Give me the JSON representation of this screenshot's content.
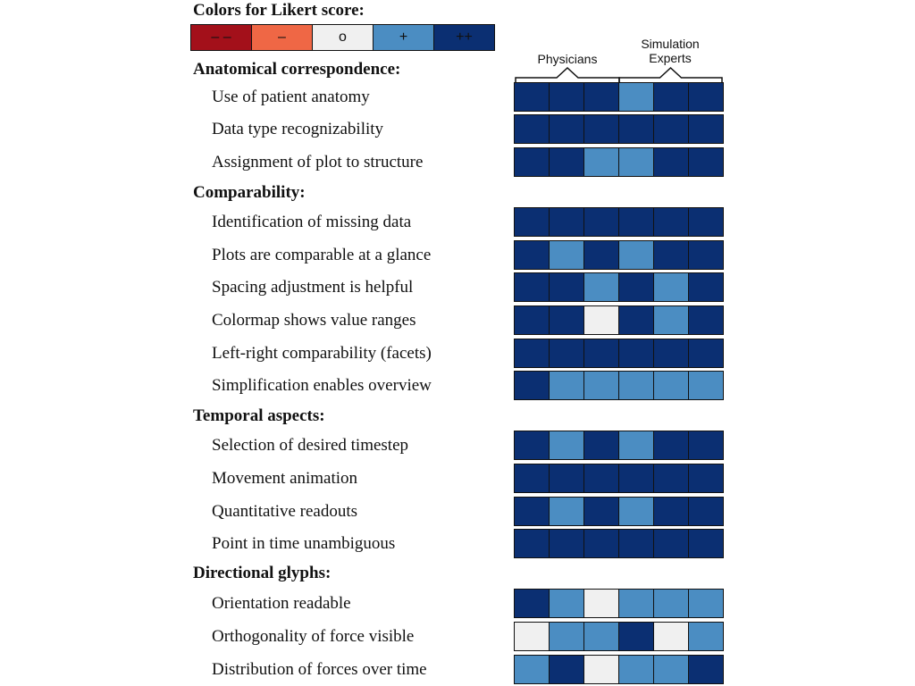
{
  "chart_data": {
    "type": "heatmap",
    "legend": {
      "title": "Colors for Likert score:",
      "items": [
        {
          "symbol": "– –",
          "score": -2,
          "color": "#a3101a"
        },
        {
          "symbol": "–",
          "score": -1,
          "color": "#ef6745"
        },
        {
          "symbol": "o",
          "score": 0,
          "color": "#f0f0f0"
        },
        {
          "symbol": "+",
          "score": 1,
          "color": "#4b8dc2"
        },
        {
          "symbol": "++",
          "score": 2,
          "color": "#0b2f72"
        }
      ]
    },
    "column_groups": [
      {
        "label": "Physicians",
        "columns": 3
      },
      {
        "label": "Simulation Experts",
        "columns": 3
      }
    ],
    "groups": [
      {
        "title": "Anatomical correspondence:",
        "rows": [
          {
            "label": "Use of patient anatomy",
            "values": [
              2,
              2,
              2,
              1,
              2,
              2
            ]
          },
          {
            "label": "Data type recognizability",
            "values": [
              2,
              2,
              2,
              2,
              2,
              2
            ]
          },
          {
            "label": "Assignment of plot to structure",
            "values": [
              2,
              2,
              1,
              1,
              2,
              2
            ]
          }
        ]
      },
      {
        "title": "Comparability:",
        "rows": [
          {
            "label": "Identification of missing data",
            "values": [
              2,
              2,
              2,
              2,
              2,
              2
            ]
          },
          {
            "label": "Plots are comparable at a glance",
            "values": [
              2,
              1,
              2,
              1,
              2,
              2
            ]
          },
          {
            "label": "Spacing adjustment is helpful",
            "values": [
              2,
              2,
              1,
              2,
              1,
              2
            ]
          },
          {
            "label": "Colormap shows value ranges",
            "values": [
              2,
              2,
              0,
              2,
              1,
              2
            ]
          },
          {
            "label": "Left-right comparability (facets)",
            "values": [
              2,
              2,
              2,
              2,
              2,
              2
            ]
          },
          {
            "label": "Simplification enables overview",
            "values": [
              2,
              1,
              1,
              1,
              1,
              1
            ]
          }
        ]
      },
      {
        "title": "Temporal aspects:",
        "rows": [
          {
            "label": "Selection of desired timestep",
            "values": [
              2,
              1,
              2,
              1,
              2,
              2
            ]
          },
          {
            "label": "Movement animation",
            "values": [
              2,
              2,
              2,
              2,
              2,
              2
            ]
          },
          {
            "label": "Quantitative readouts",
            "values": [
              2,
              1,
              2,
              1,
              2,
              2
            ]
          },
          {
            "label": "Point in time unambiguous",
            "values": [
              2,
              2,
              2,
              2,
              2,
              2
            ]
          }
        ]
      },
      {
        "title": "Directional glyphs:",
        "rows": [
          {
            "label": "Orientation readable",
            "values": [
              2,
              1,
              0,
              1,
              1,
              1
            ]
          },
          {
            "label": "Orthogonality of force visible",
            "values": [
              0,
              1,
              1,
              2,
              0,
              1
            ]
          },
          {
            "label": "Distribution of forces over time",
            "values": [
              1,
              2,
              0,
              1,
              1,
              2
            ]
          }
        ]
      }
    ]
  }
}
